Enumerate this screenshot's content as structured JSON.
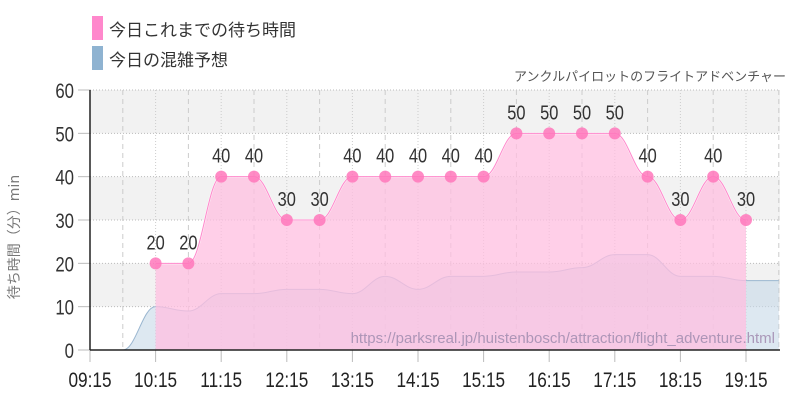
{
  "legend": {
    "items": [
      {
        "label": "今日これまでの待ち時間",
        "color": "#ff88cc"
      },
      {
        "label": "今日の混雑予想",
        "color": "#8fb3d1"
      }
    ]
  },
  "subtitle": "アンクルパイロットのフライトアドベンチャー",
  "watermark": "https://parksreal.jp/huistenbosch/attraction/flight_adventure.html",
  "colors": {
    "actual_fill": "#ffbfe0",
    "actual_line": "#ff88cc",
    "actual_point": "#ff77bb",
    "forecast_fill": "#c6d9e8",
    "forecast_line": "#9ab6d0",
    "band": "#f2f2f2",
    "axis": "#222222"
  },
  "chart_data": {
    "type": "area",
    "title": "アンクルパイロットのフライトアドベンチャー",
    "xlabel": "",
    "ylabel": "待ち時間（分）min",
    "ylim": [
      0,
      60
    ],
    "yticks": [
      0,
      10,
      20,
      30,
      40,
      50,
      60
    ],
    "xticks": [
      "09:15",
      "10:15",
      "11:15",
      "12:15",
      "13:15",
      "14:15",
      "15:15",
      "16:15",
      "17:15",
      "18:15",
      "19:15"
    ],
    "legend_position": "top-left",
    "grid": true,
    "series": [
      {
        "name": "今日これまでの待ち時間",
        "type": "area-with-points",
        "x": [
          "10:15",
          "10:45",
          "11:15",
          "11:45",
          "12:15",
          "12:45",
          "13:15",
          "13:45",
          "14:15",
          "14:45",
          "15:15",
          "15:45",
          "16:15",
          "16:45",
          "17:15",
          "17:45",
          "18:15",
          "18:45",
          "19:15"
        ],
        "values": [
          20,
          20,
          40,
          40,
          30,
          30,
          40,
          40,
          40,
          40,
          40,
          50,
          50,
          50,
          50,
          40,
          30,
          40,
          30
        ]
      },
      {
        "name": "今日の混雑予想",
        "type": "area",
        "x": [
          "09:15",
          "09:45",
          "10:15",
          "10:45",
          "11:15",
          "11:45",
          "12:15",
          "12:45",
          "13:15",
          "13:45",
          "14:15",
          "14:45",
          "15:15",
          "15:45",
          "16:15",
          "16:45",
          "17:15",
          "17:45",
          "18:15",
          "18:45",
          "19:15",
          "19:45"
        ],
        "values": [
          0,
          0,
          10,
          9,
          13,
          13,
          14,
          14,
          13,
          17,
          14,
          17,
          17,
          18,
          18,
          19,
          22,
          22,
          17,
          17,
          16,
          16
        ]
      }
    ]
  }
}
